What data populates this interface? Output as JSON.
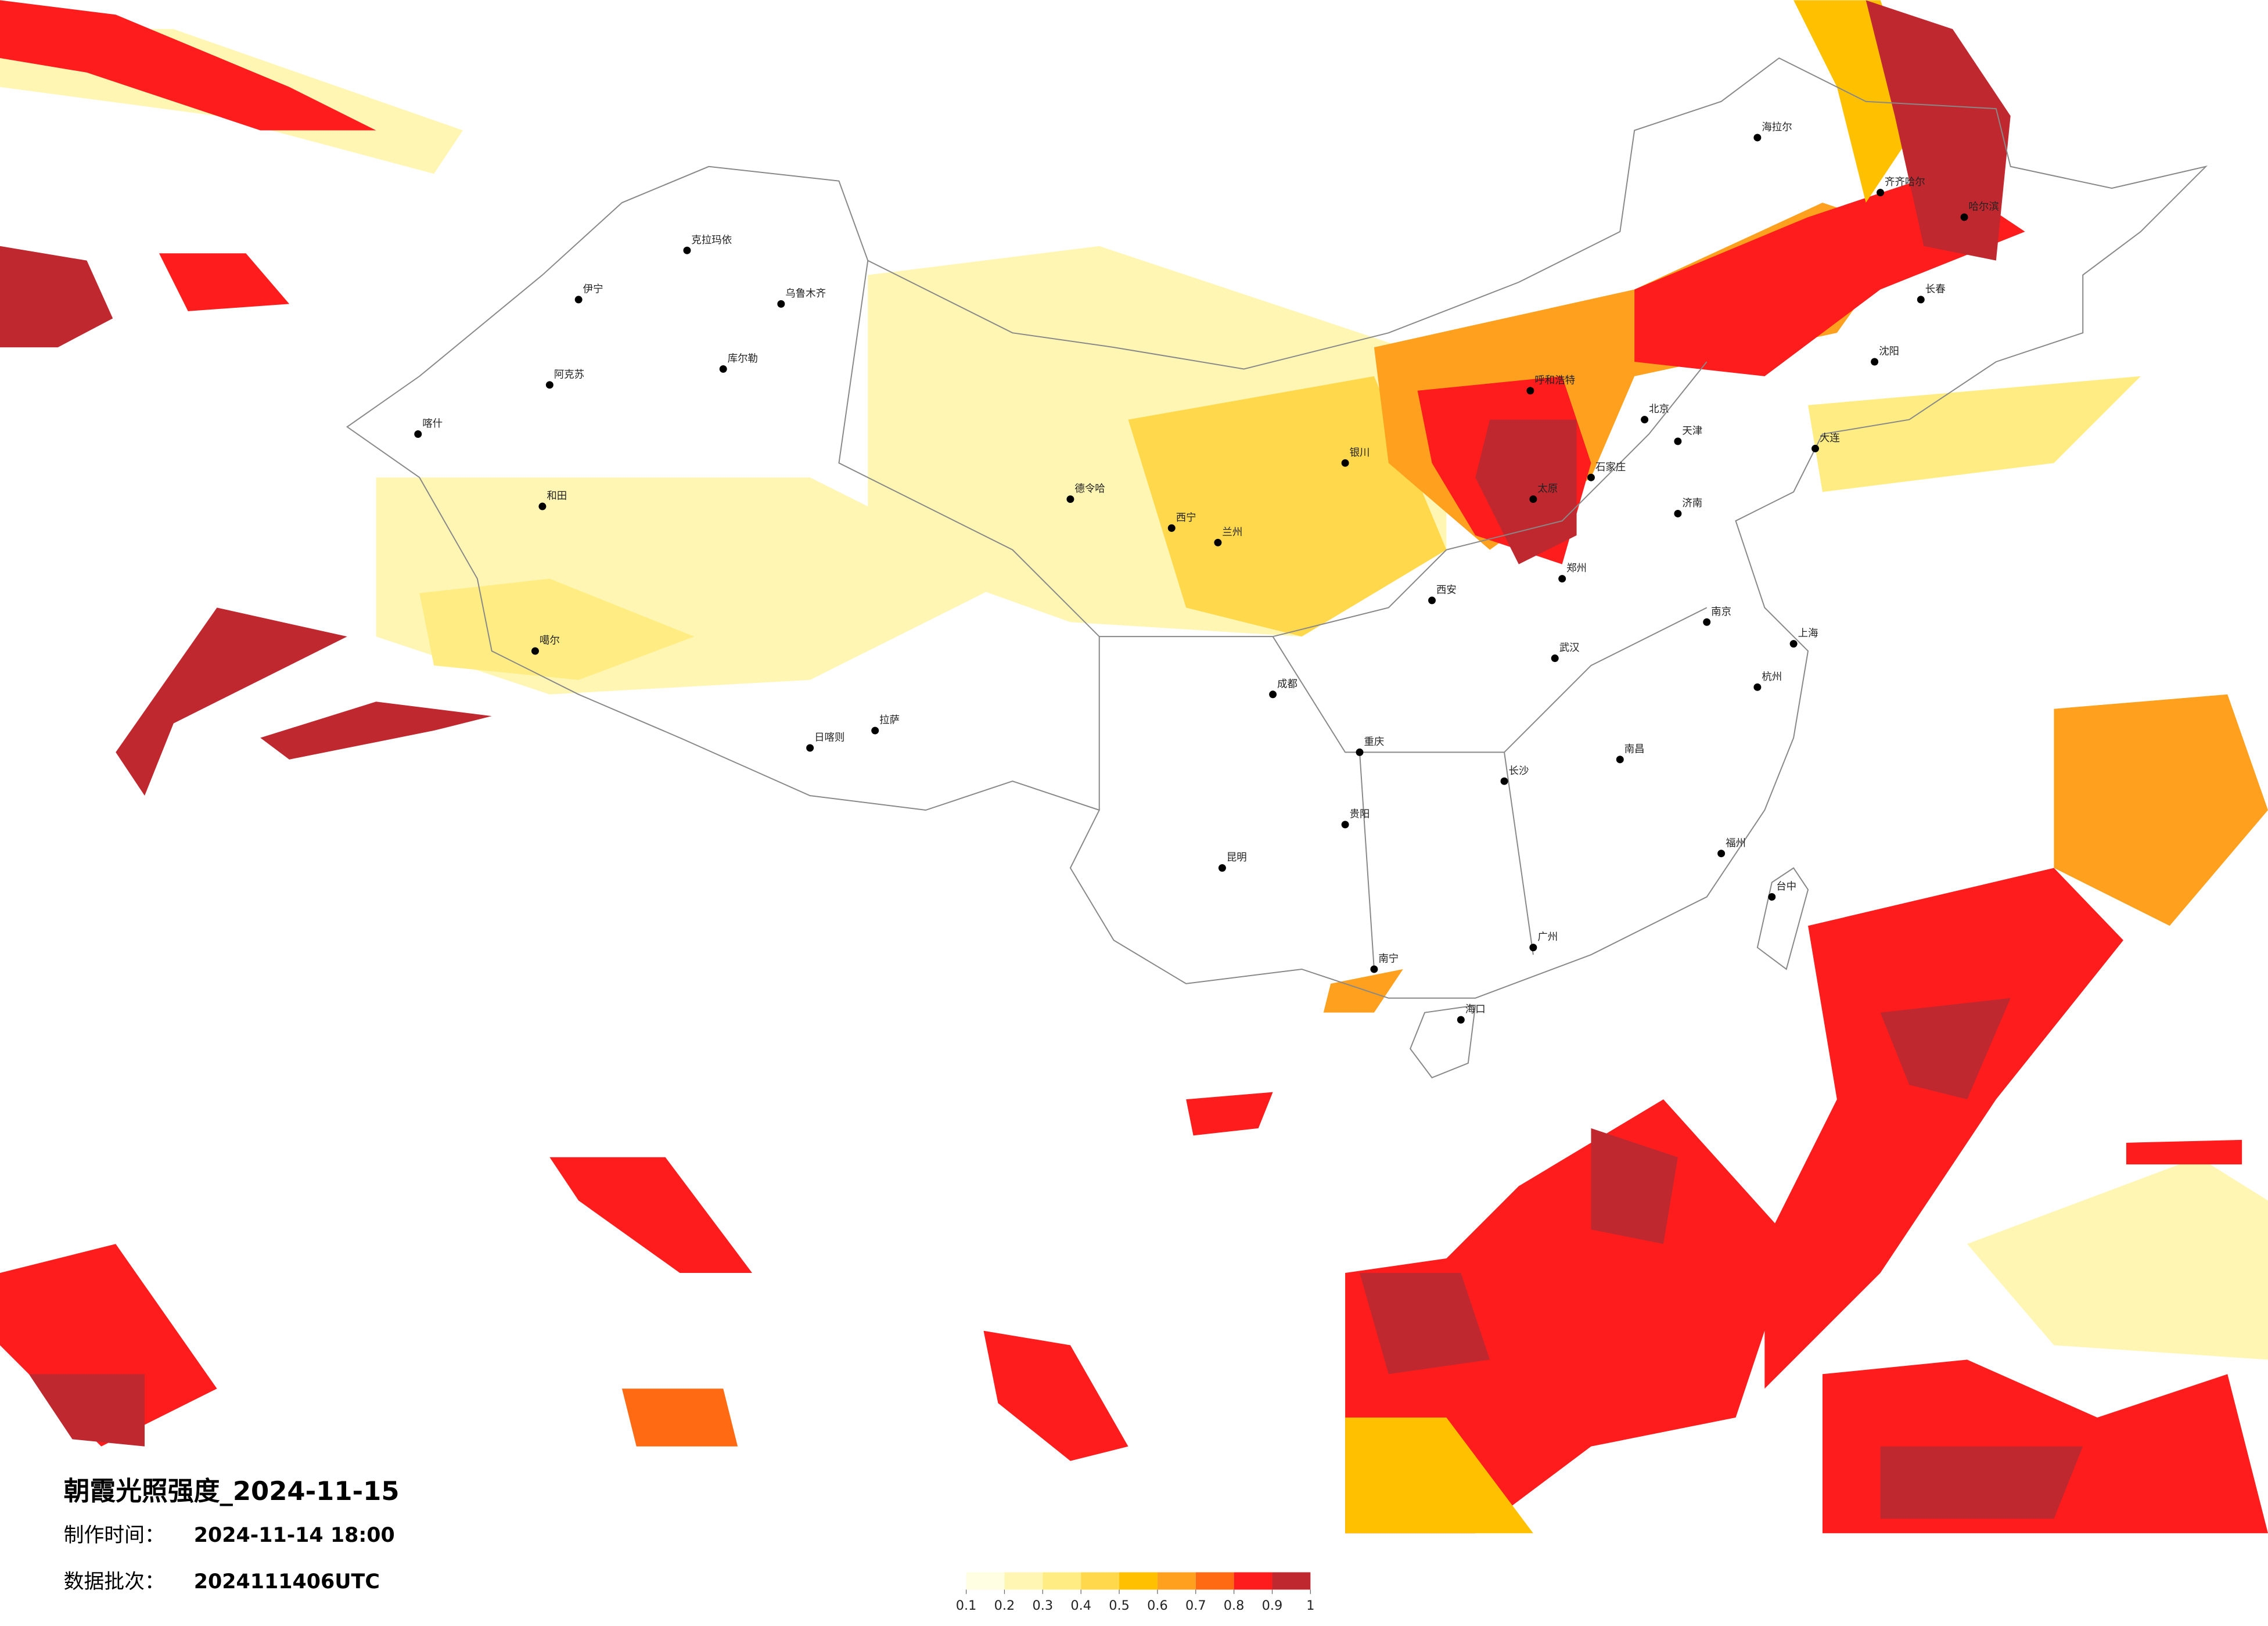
{
  "title": "朝霞光照强度_2024-11-15",
  "made_label": "制作时间：",
  "made_time": "2024-11-14 18:00",
  "batch_label": "数据批次：",
  "batch": "2024111406UTC",
  "legend": {
    "ticks": [
      0.1,
      0.2,
      0.3,
      0.4,
      0.5,
      0.6,
      0.7,
      0.8,
      0.9,
      1
    ],
    "colors": [
      "#fffde2",
      "#fff6b4",
      "#ffec82",
      "#ffd84c",
      "#ffc000",
      "#ffa01e",
      "#ff6a12",
      "#ff1c1c",
      "#c0282f"
    ]
  },
  "cities": [
    "海拉尔",
    "齐齐哈尔",
    "哈尔滨",
    "长春",
    "沈阳",
    "大连",
    "北京",
    "天津",
    "呼和浩特",
    "石家庄",
    "太原",
    "济南",
    "郑州",
    "西安",
    "兰州",
    "银川",
    "西宁",
    "乌鲁木齐",
    "克拉玛依",
    "伊宁",
    "喀什",
    "阿克苏",
    "库尔勒",
    "和田",
    "拉萨",
    "日喀则",
    "成都",
    "重庆",
    "武汉",
    "南京",
    "上海",
    "杭州",
    "长沙",
    "南昌",
    "福州",
    "贵阳",
    "昆明",
    "南宁",
    "广州",
    "海口",
    "台中",
    "德令哈",
    "噶尔"
  ]
}
